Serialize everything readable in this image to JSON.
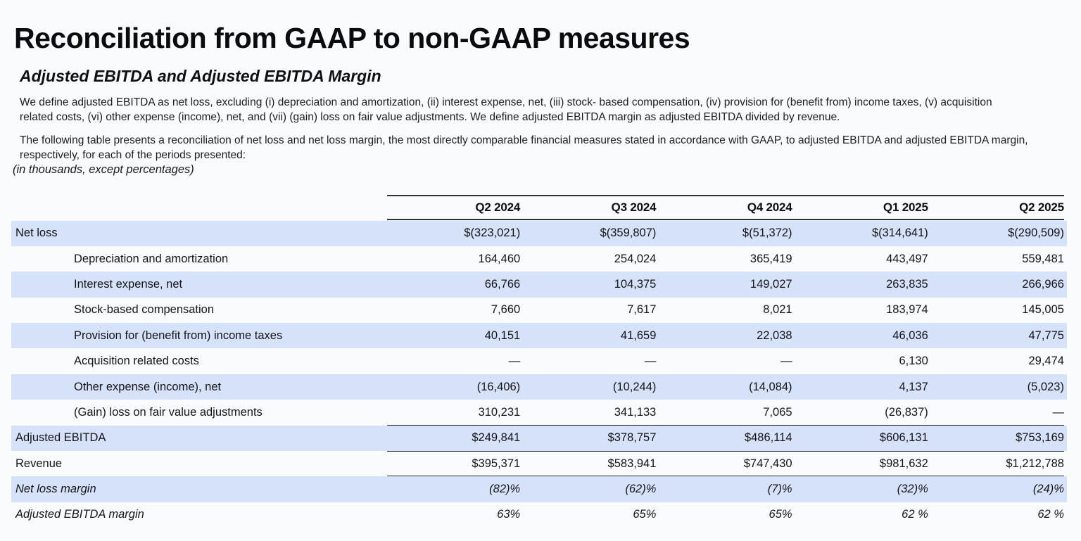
{
  "page": {
    "title": "Reconciliation from GAAP to non-GAAP measures",
    "subtitle": "Adjusted EBITDA and Adjusted EBITDA Margin",
    "paragraph1": "We define adjusted EBITDA as net loss, excluding (i) depreciation and amortization, (ii) interest expense, net, (iii) stock- based compensation, (iv) provision for (benefit from) income taxes, (v) acquisition related costs, (vi) other expense (income), net, and (vii) (gain) loss on fair value adjustments. We define adjusted EBITDA margin as adjusted EBITDA divided by revenue.",
    "paragraph2": "The following table presents a reconciliation of net loss and net loss margin, the most directly comparable financial measures stated in accordance with GAAP, to adjusted EBITDA and adjusted EBITDA margin, respectively, for each of the periods presented:",
    "units_note": "(in thousands, except percentages)"
  },
  "colors": {
    "background": "#fafbfd",
    "row_band": "#d6e1fa",
    "text": "#141519",
    "rule": "#2f3136"
  },
  "chart_data": {
    "type": "table",
    "title": "Reconciliation from GAAP to non-GAAP measures — Adjusted EBITDA and Adjusted EBITDA Margin (in thousands, except percentages)",
    "columns": [
      "Q2 2024",
      "Q3 2024",
      "Q4 2024",
      "Q1 2025",
      "Q2 2025"
    ],
    "rows": [
      {
        "label": "Net loss",
        "values": [
          "$(323,021)",
          "$(359,807)",
          "$(51,372)",
          "$(314,641)",
          "$(290,509)"
        ],
        "band": true,
        "indent": false,
        "italic": false
      },
      {
        "label": "Depreciation and amortization",
        "values": [
          "164,460",
          "254,024",
          "365,419",
          "443,497",
          "559,481"
        ],
        "band": false,
        "indent": true,
        "italic": false
      },
      {
        "label": "Interest expense, net",
        "values": [
          "66,766",
          "104,375",
          "149,027",
          "263,835",
          "266,966"
        ],
        "band": true,
        "indent": true,
        "italic": false
      },
      {
        "label": "Stock-based compensation",
        "values": [
          "7,660",
          "7,617",
          "8,021",
          "183,974",
          "145,005"
        ],
        "band": false,
        "indent": true,
        "italic": false
      },
      {
        "label": "Provision for (benefit from) income taxes",
        "values": [
          "40,151",
          "41,659",
          "22,038",
          "46,036",
          "47,775"
        ],
        "band": true,
        "indent": true,
        "italic": false
      },
      {
        "label": "Acquisition related costs",
        "values": [
          "—",
          "—",
          "—",
          "6,130",
          "29,474"
        ],
        "band": false,
        "indent": true,
        "italic": false
      },
      {
        "label": "Other expense (income), net",
        "values": [
          "(16,406)",
          "(10,244)",
          "(14,084)",
          "4,137",
          "(5,023)"
        ],
        "band": true,
        "indent": true,
        "italic": false
      },
      {
        "label": "(Gain) loss on fair value adjustments",
        "values": [
          "310,231",
          "341,133",
          "7,065",
          "(26,837)",
          "—"
        ],
        "band": false,
        "indent": true,
        "italic": false
      },
      {
        "label": "Adjusted EBITDA",
        "values": [
          "$249,841",
          "$378,757",
          "$486,114",
          "$606,131",
          "$753,169"
        ],
        "band": true,
        "indent": false,
        "italic": false
      },
      {
        "label": "Revenue",
        "values": [
          "$395,371",
          "$583,941",
          "$747,430",
          "$981,632",
          "$1,212,788"
        ],
        "band": false,
        "indent": false,
        "italic": false
      },
      {
        "label": "Net loss margin",
        "values": [
          "(82)%",
          "(62)%",
          "(7)%",
          "(32)%",
          "(24)%"
        ],
        "band": true,
        "indent": false,
        "italic": true
      },
      {
        "label": "Adjusted EBITDA margin",
        "values": [
          "63%",
          "65%",
          "65%",
          "62 %",
          "62 %"
        ],
        "band": false,
        "indent": false,
        "italic": true
      }
    ]
  }
}
